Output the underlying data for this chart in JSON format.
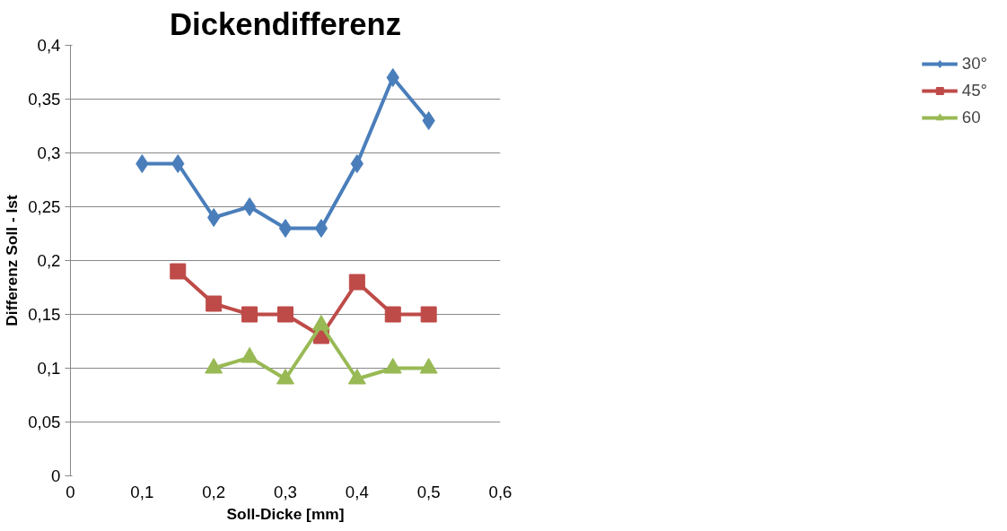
{
  "chart_data": {
    "type": "line",
    "title": "Dickendifferenz",
    "xlabel": "Soll-Dicke [mm]",
    "ylabel": "Differenz Soll - Ist",
    "xlim": [
      0,
      0.6
    ],
    "xticks": [
      {
        "value": 0,
        "label": "0"
      },
      {
        "value": 0.1,
        "label": "0,1"
      },
      {
        "value": 0.2,
        "label": "0,2"
      },
      {
        "value": 0.3,
        "label": "0,3"
      },
      {
        "value": 0.4,
        "label": "0,4"
      },
      {
        "value": 0.5,
        "label": "0,5"
      },
      {
        "value": 0.6,
        "label": "0,6"
      }
    ],
    "ylim": [
      0,
      0.4
    ],
    "yticks": [
      {
        "value": 0,
        "label": "0"
      },
      {
        "value": 0.05,
        "label": "0,05"
      },
      {
        "value": 0.1,
        "label": "0,1"
      },
      {
        "value": 0.15,
        "label": "0,15"
      },
      {
        "value": 0.2,
        "label": "0,2"
      },
      {
        "value": 0.25,
        "label": "0,25"
      },
      {
        "value": 0.3,
        "label": "0,3"
      },
      {
        "value": 0.35,
        "label": "0,35"
      },
      {
        "value": 0.4,
        "label": "0,4"
      }
    ],
    "grid": "y",
    "legend": "right",
    "line_style": "solid",
    "series": [
      {
        "name": "30°",
        "color": "#4a7ebb",
        "marker": "diamond",
        "x": [
          0.1,
          0.15,
          0.2,
          0.25,
          0.3,
          0.35,
          0.4,
          0.45,
          0.5
        ],
        "values": [
          0.29,
          0.29,
          0.24,
          0.25,
          0.23,
          0.23,
          0.29,
          0.37,
          0.33
        ]
      },
      {
        "name": "45°",
        "color": "#be4b48",
        "marker": "square",
        "x": [
          0.15,
          0.2,
          0.25,
          0.3,
          0.35,
          0.4,
          0.45,
          0.5
        ],
        "values": [
          0.19,
          0.16,
          0.15,
          0.15,
          0.13,
          0.18,
          0.15,
          0.15
        ]
      },
      {
        "name": "60",
        "color": "#98b954",
        "marker": "triangle",
        "x": [
          0.2,
          0.25,
          0.3,
          0.35,
          0.4,
          0.45,
          0.5
        ],
        "values": [
          0.1,
          0.11,
          0.09,
          0.14,
          0.09,
          0.1,
          0.1
        ]
      }
    ]
  }
}
